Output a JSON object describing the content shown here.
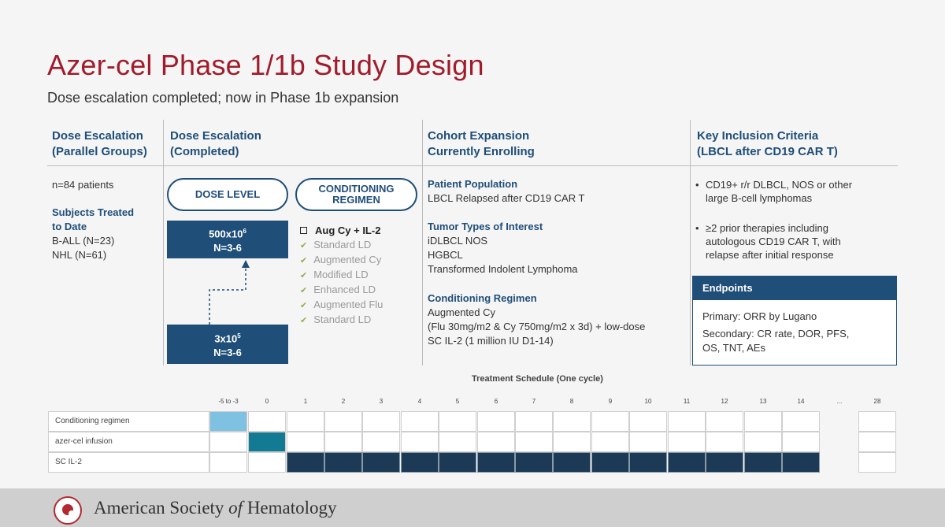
{
  "title": "Azer-cel Phase 1/1b Study Design",
  "subtitle": "Dose escalation completed; now in Phase 1b expansion",
  "columns": {
    "col1": {
      "h1": "Dose Escalation",
      "h2": "(Parallel Groups)"
    },
    "col2": {
      "h1": "Dose Escalation",
      "h2": "(Completed)"
    },
    "col3": {
      "h1": "Cohort Expansion",
      "h2": "Currently Enrolling"
    },
    "col4": {
      "h1": "Key Inclusion Criteria",
      "h2": "(LBCL after CD19 CAR T)"
    }
  },
  "col1": {
    "patients": "n=84 patients",
    "subjects_h1": "Subjects Treated",
    "subjects_h2": "to Date",
    "ball": "B-ALL (N=23)",
    "nhl": "NHL (N=61)"
  },
  "col2": {
    "dose_level": "DOSE LEVEL",
    "conditioning_l1": "CONDITIONING",
    "conditioning_l2": "REGIMEN",
    "high_dose": {
      "base": "500x10",
      "exp": "6",
      "n": "N=3-6"
    },
    "low_dose": {
      "base": "3x10",
      "exp": "5",
      "n": "N=3-6"
    },
    "regimen_head": "Aug Cy + IL-2",
    "regimen_items": [
      "Standard LD",
      "Augmented Cy",
      "Modified LD",
      "Enhanced LD",
      "Augmented Flu",
      "Standard LD"
    ]
  },
  "col3": {
    "pop_h": "Patient Population",
    "pop": "LBCL Relapsed after CD19 CAR T",
    "tumor_h": "Tumor Types of Interest",
    "tumor1": "iDLBCL NOS",
    "tumor2": "HGBCL",
    "tumor3": "Transformed Indolent Lymphoma",
    "cond_h": "Conditioning Regimen",
    "cond1": "Augmented Cy",
    "cond2": "(Flu 30mg/m2 & Cy 750mg/m2 x 3d) + low-dose",
    "cond3": "SC IL-2 (1 million IU D1-14)"
  },
  "col4": {
    "b1_l1": "CD19+ r/r DLBCL, NOS or other",
    "b1_l2": "large B-cell lymphomas",
    "b2_l1": "≥2 prior therapies including",
    "b2_l2": "autologous CD19 CAR T, with",
    "b2_l3": "relapse after initial response",
    "endpoints_h": "Endpoints",
    "primary": "Primary: ORR by Lugano",
    "secondary_l1": "Secondary: CR rate, DOR, PFS,",
    "secondary_l2": "OS, TNT, AEs"
  },
  "schedule": {
    "title": "Treatment Schedule (One cycle)",
    "days": [
      "-5 to -3",
      "0",
      "1",
      "2",
      "3",
      "4",
      "5",
      "6",
      "7",
      "8",
      "9",
      "10",
      "11",
      "12",
      "13",
      "14",
      "...",
      "28"
    ],
    "rows": [
      "Conditioning regimen",
      "azer-cel infusion",
      "SC IL-2"
    ]
  },
  "colors": {
    "title_red": "#a01c2c",
    "navy": "#1f4e79",
    "light_blue": "#7fc1e0",
    "teal": "#127a93",
    "dark_navy": "#1c3a56"
  },
  "footer": {
    "pre": "American Society ",
    "of": "of",
    "post": " Hematology"
  }
}
